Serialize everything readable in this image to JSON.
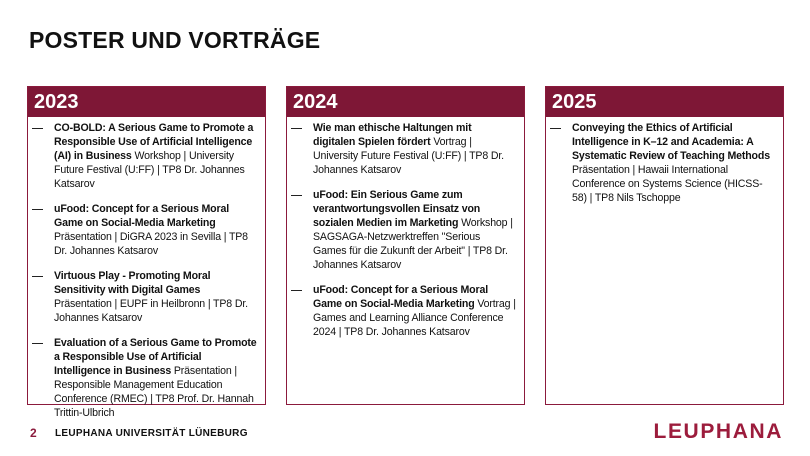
{
  "header": {
    "title": "POSTER UND VORTRÄGE"
  },
  "columns": [
    {
      "year": "2023",
      "items": [
        {
          "title": "CO-BOLD: A Serious Game to Promote a Responsible Use of Artificial Intelligence (AI) in Business",
          "details": "Workshop | University Future Festival (U:FF) | TP8 Dr. Johannes Katsarov"
        },
        {
          "title": "uFood: Concept for a Serious Moral Game on Social-Media Marketing",
          "details": "Präsentation | DiGRA 2023 in Sevilla | TP8 Dr. Johannes Katsarov"
        },
        {
          "title": "Virtuous Play - Promoting Moral Sensitivity with Digital Games",
          "details": "Präsentation |  EUPF in Heilbronn | TP8 Dr. Johannes Katsarov"
        },
        {
          "title": "Evaluation of a Serious Game to Promote a Responsible Use of Artificial Intelligence in Business",
          "details": "Präsentation | Responsible Management Education Conference (RMEC) | TP8 Prof. Dr. Hannah Trittin-Ulbrich"
        }
      ]
    },
    {
      "year": "2024",
      "items": [
        {
          "title": "Wie man ethische Haltungen mit digitalen Spielen fördert",
          "details": "Vortrag | University Future Festival (U:FF) | TP8 Dr. Johannes Katsarov"
        },
        {
          "title": "uFood: Ein Serious Game zum verantwortungsvollen Einsatz von sozialen Medien im Marketing",
          "details": "Workshop | SAGSAGA-Netzwerktreffen \"Serious Games für die Zukunft der Arbeit\" | TP8 Dr. Johannes Katsarov"
        },
        {
          "title": "uFood: Concept for a Serious Moral Game on Social-Media Marketing",
          "details": "Vortrag | Games and Learning Alliance Conference 2024 |  TP8 Dr. Johannes Katsarov"
        }
      ]
    },
    {
      "year": "2025",
      "items": [
        {
          "title": "Conveying the Ethics of Artificial Intelligence in K–12 and Academia: A Systematic Review of Teaching Methods",
          "details": "Präsentation | Hawaii International Conference on Systems Science (HICSS-58) | TP8 Nils Tschoppe"
        }
      ]
    }
  ],
  "footer": {
    "page": "2",
    "institution": "LEUPHANA UNIVERSITÄT LÜNEBURG",
    "logo": "LEUPHANA"
  }
}
